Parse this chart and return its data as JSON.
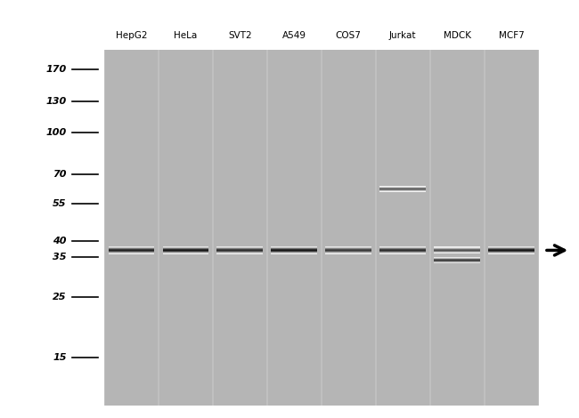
{
  "lane_labels": [
    "HepG2",
    "HeLa",
    "SVT2",
    "A549",
    "COS7",
    "Jurkat",
    "MDCK",
    "MCF7"
  ],
  "mw_markers": [
    170,
    130,
    100,
    70,
    55,
    40,
    35,
    25,
    15
  ],
  "bg_color": "#c8c8c8",
  "lane_color": "#b8b8b8",
  "band_color_main": "#1a1a1a",
  "band_color_light": "#555555",
  "figure_bg": "#ffffff",
  "n_lanes": 8,
  "main_band_mw": 37,
  "jurkat_extra_band_mw": 62,
  "mdck_lower_band_mw": 34,
  "arrow_mw": 37
}
